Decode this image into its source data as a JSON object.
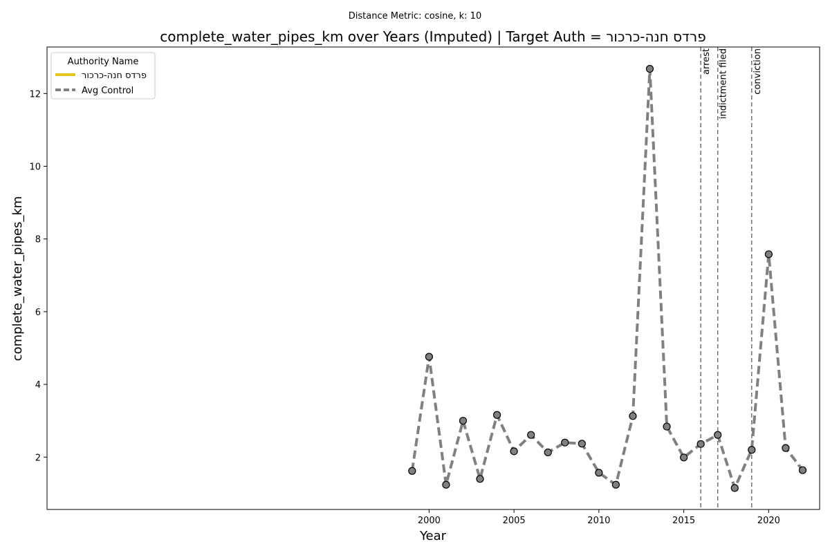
{
  "chart_data": {
    "type": "line",
    "suptitle": "Distance Metric: cosine, k: 10",
    "title": "complete_water_pipes_km over Years (Imputed) | Target Auth = פרדס חנה-כרכור",
    "xlabel": "Year",
    "ylabel": "complete_water_pipes_km",
    "xlim": [
      1977.5,
      2023.0
    ],
    "ylim": [
      0.56,
      13.28
    ],
    "x_ticks": [
      2000,
      2005,
      2010,
      2015,
      2020
    ],
    "y_ticks": [
      2,
      4,
      6,
      8,
      10,
      12
    ],
    "grid": false,
    "legend": {
      "title": "Authority Name",
      "placement": "top-left",
      "entries": [
        {
          "label": "פרדס חנה-כרכור",
          "color": "#e6c619",
          "style": "solid"
        },
        {
          "label": "Avg Control",
          "color": "#808080",
          "style": "dashed"
        }
      ]
    },
    "series": [
      {
        "name": "Avg Control",
        "color": "#808080",
        "marker_color": "#808080",
        "x": [
          1999,
          2000,
          2001,
          2002,
          2003,
          2004,
          2005,
          2006,
          2007,
          2008,
          2009,
          2010,
          2011,
          2012,
          2013,
          2014,
          2015,
          2016,
          2017,
          2018,
          2019,
          2020,
          2021,
          2022
        ],
        "y": [
          1.62,
          4.76,
          1.24,
          3.0,
          1.4,
          3.16,
          2.16,
          2.61,
          2.13,
          2.4,
          2.37,
          1.57,
          1.24,
          3.13,
          12.68,
          2.84,
          1.99,
          2.36,
          2.61,
          1.15,
          2.2,
          7.58,
          2.25,
          1.64
        ]
      }
    ],
    "annotations": [
      {
        "x": 2016,
        "label": "arrest"
      },
      {
        "x": 2017,
        "label": "indictment filed"
      },
      {
        "x": 2019,
        "label": "conviction"
      }
    ]
  }
}
